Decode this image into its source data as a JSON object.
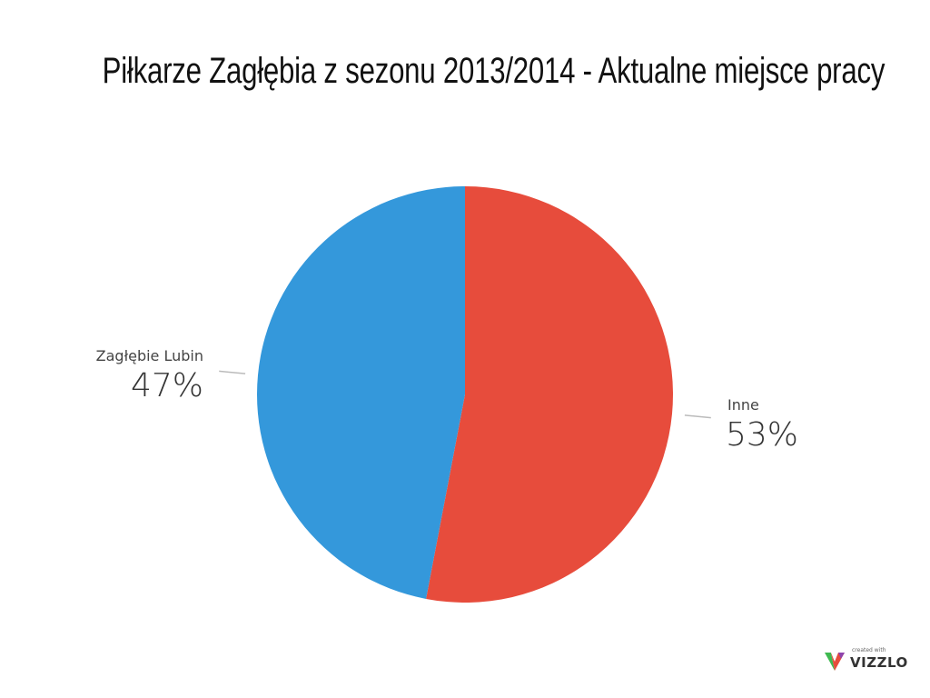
{
  "chart_data": {
    "type": "pie",
    "title": "Piłkarze Zagłębia z sezonu 2013/2014 - Aktualne miejsce pracy",
    "slices": [
      {
        "label": "Inne",
        "value": 53,
        "display": "53%",
        "color": "#e74c3c"
      },
      {
        "label": "Zagłębie Lubin",
        "value": 47,
        "display": "47%",
        "color": "#3498db"
      }
    ],
    "legend": "none"
  },
  "watermark": {
    "small": "created with",
    "brand": "VIZZLO"
  }
}
